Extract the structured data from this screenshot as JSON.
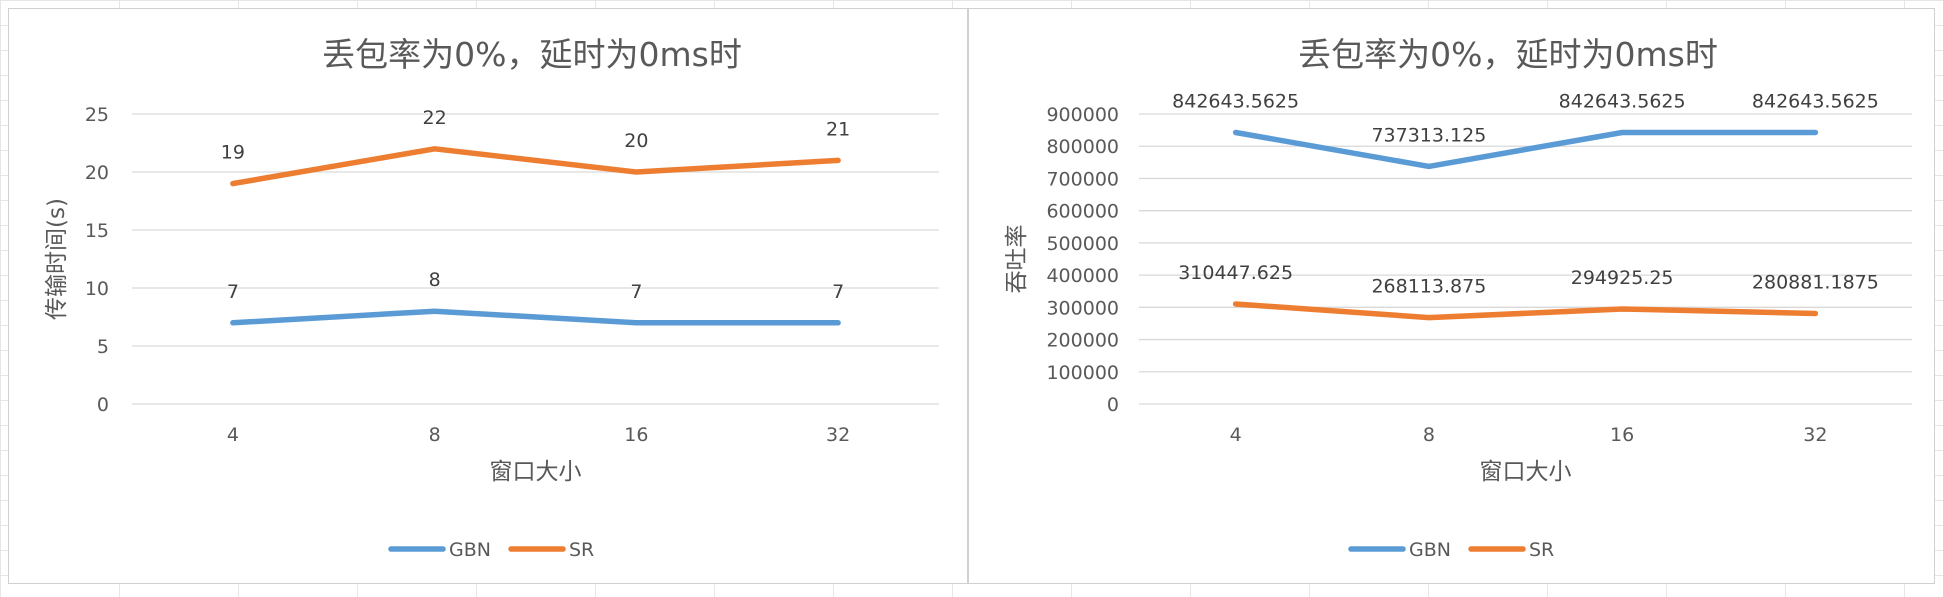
{
  "chart_data": [
    {
      "type": "line",
      "title": "丢包率为0%，延时为0ms时",
      "xlabel": "窗口大小",
      "ylabel": "传输时间(s)",
      "categories": [
        "4",
        "8",
        "16",
        "32"
      ],
      "ylim": [
        0,
        25
      ],
      "yticks": [
        0,
        5,
        10,
        15,
        20,
        25
      ],
      "series": [
        {
          "name": "GBN",
          "values": [
            7,
            8,
            7,
            7
          ],
          "labels": [
            "7",
            "8",
            "7",
            "7"
          ],
          "color": "#5B9BD5"
        },
        {
          "name": "SR",
          "values": [
            19,
            22,
            20,
            21
          ],
          "labels": [
            "19",
            "22",
            "20",
            "21"
          ],
          "color": "#ED7D31"
        }
      ],
      "grid": true,
      "legend": "bottom"
    },
    {
      "type": "line",
      "title": "丢包率为0%，延时为0ms时",
      "xlabel": "窗口大小",
      "ylabel": "吞吐率",
      "categories": [
        "4",
        "8",
        "16",
        "32"
      ],
      "ylim": [
        0,
        900000
      ],
      "yticks": [
        0,
        100000,
        200000,
        300000,
        400000,
        500000,
        600000,
        700000,
        800000,
        900000
      ],
      "series": [
        {
          "name": "GBN",
          "values": [
            842643.5625,
            737313.125,
            842643.5625,
            842643.5625
          ],
          "labels": [
            "842643.5625",
            "737313.125",
            "842643.5625",
            "842643.5625"
          ],
          "color": "#5B9BD5"
        },
        {
          "name": "SR",
          "values": [
            310447.625,
            268113.875,
            294925.25,
            280881.1875
          ],
          "labels": [
            "310447.625",
            "268113.875",
            "294925.25",
            "280881.1875"
          ],
          "color": "#ED7D31"
        }
      ],
      "grid": true,
      "legend": "bottom"
    }
  ]
}
